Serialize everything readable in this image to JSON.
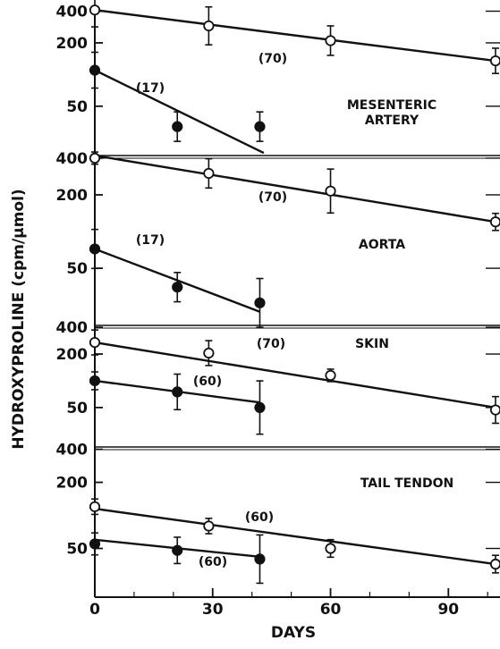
{
  "figure": {
    "ylabel": "HYDROXYPROLINE (cpm/µmol)",
    "xlabel": "DAYS",
    "xticks": [
      "0",
      "30",
      "60",
      "90"
    ]
  },
  "chart_data": [
    {
      "type": "scatter",
      "title": "MESENTERIC ARTERY",
      "title_lines": [
        "MESENTERIC",
        "ARTERY"
      ],
      "yscale": "log",
      "yticks": [
        400,
        200,
        50
      ],
      "ylim": [
        17,
        420
      ],
      "xlim": [
        0,
        102
      ],
      "series": [
        {
          "marker": "open",
          "x": [
            0,
            29,
            60,
            102
          ],
          "y": [
            410,
            290,
            210,
            135
          ],
          "err": [
            0.16,
            0.18,
            0.14,
            0.12
          ],
          "fit": {
            "x": [
              0,
              102
            ],
            "y": [
              410,
              135
            ]
          },
          "half_life": "(70)"
        },
        {
          "marker": "filled",
          "x": [
            0,
            21,
            42
          ],
          "y": [
            110,
            32,
            32
          ],
          "err": [
            0.17,
            0.14,
            0.14
          ],
          "fit": {
            "x": [
              0,
              43
            ],
            "y": [
              110,
              18
            ]
          },
          "half_life": "(17)"
        }
      ]
    },
    {
      "type": "scatter",
      "title": "AORTA",
      "title_lines": [
        "AORTA"
      ],
      "yscale": "log",
      "yticks": [
        400,
        200,
        50
      ],
      "ylim": [
        17,
        420
      ],
      "xlim": [
        0,
        102
      ],
      "series": [
        {
          "marker": "open",
          "x": [
            0,
            29,
            60,
            102
          ],
          "y": [
            400,
            300,
            215,
            120
          ],
          "err": [
            0.05,
            0.12,
            0.18,
            0.07
          ],
          "fit": {
            "x": [
              0,
              102
            ],
            "y": [
              420,
              120
            ]
          },
          "half_life": "(70)"
        },
        {
          "marker": "filled",
          "x": [
            0,
            21,
            42
          ],
          "y": [
            72,
            35,
            26
          ],
          "err": [
            0.16,
            0.12,
            0.2
          ],
          "fit": {
            "x": [
              0,
              42
            ],
            "y": [
              72,
              22
            ]
          },
          "half_life": "(17)"
        }
      ]
    },
    {
      "type": "scatter",
      "title": "SKIN",
      "title_lines": [
        "SKIN"
      ],
      "yscale": "log",
      "yticks": [
        400,
        200,
        50
      ],
      "ylim": [
        18,
        420
      ],
      "xlim": [
        0,
        102
      ],
      "series": [
        {
          "marker": "open",
          "x": [
            0,
            29,
            60,
            102
          ],
          "y": [
            270,
            205,
            115,
            47
          ],
          "err": [
            0.14,
            0.14,
            0.07,
            0.15
          ],
          "fit": {
            "x": [
              0,
              102
            ],
            "y": [
              270,
              50
            ]
          },
          "half_life": "(70)"
        },
        {
          "marker": "filled",
          "x": [
            0,
            21,
            42
          ],
          "y": [
            100,
            75,
            50
          ],
          "err": [
            0.1,
            0.2,
            0.3
          ],
          "fit": {
            "x": [
              0,
              42
            ],
            "y": [
              100,
              57
            ]
          },
          "half_life": "(60)"
        }
      ]
    },
    {
      "type": "scatter",
      "title": "TAIL TENDON",
      "title_lines": [
        "TAIL TENDON"
      ],
      "yscale": "log",
      "yticks": [
        400,
        200,
        50
      ],
      "ylim": [
        18,
        420
      ],
      "xlim": [
        0,
        102
      ],
      "series": [
        {
          "marker": "open",
          "x": [
            0,
            29,
            60,
            102
          ],
          "y": [
            120,
            80,
            50,
            36
          ],
          "err": [
            0.07,
            0.07,
            0.08,
            0.08
          ],
          "fit": {
            "x": [
              0,
              102
            ],
            "y": [
              115,
              36
            ]
          },
          "half_life": "(60)"
        },
        {
          "marker": "filled",
          "x": [
            0,
            21,
            42
          ],
          "y": [
            55,
            48,
            40
          ],
          "err": [
            0.1,
            0.12,
            0.22
          ],
          "fit": {
            "x": [
              0,
              42
            ],
            "y": [
              60,
              42
            ]
          },
          "half_life": "(60)"
        }
      ]
    }
  ]
}
